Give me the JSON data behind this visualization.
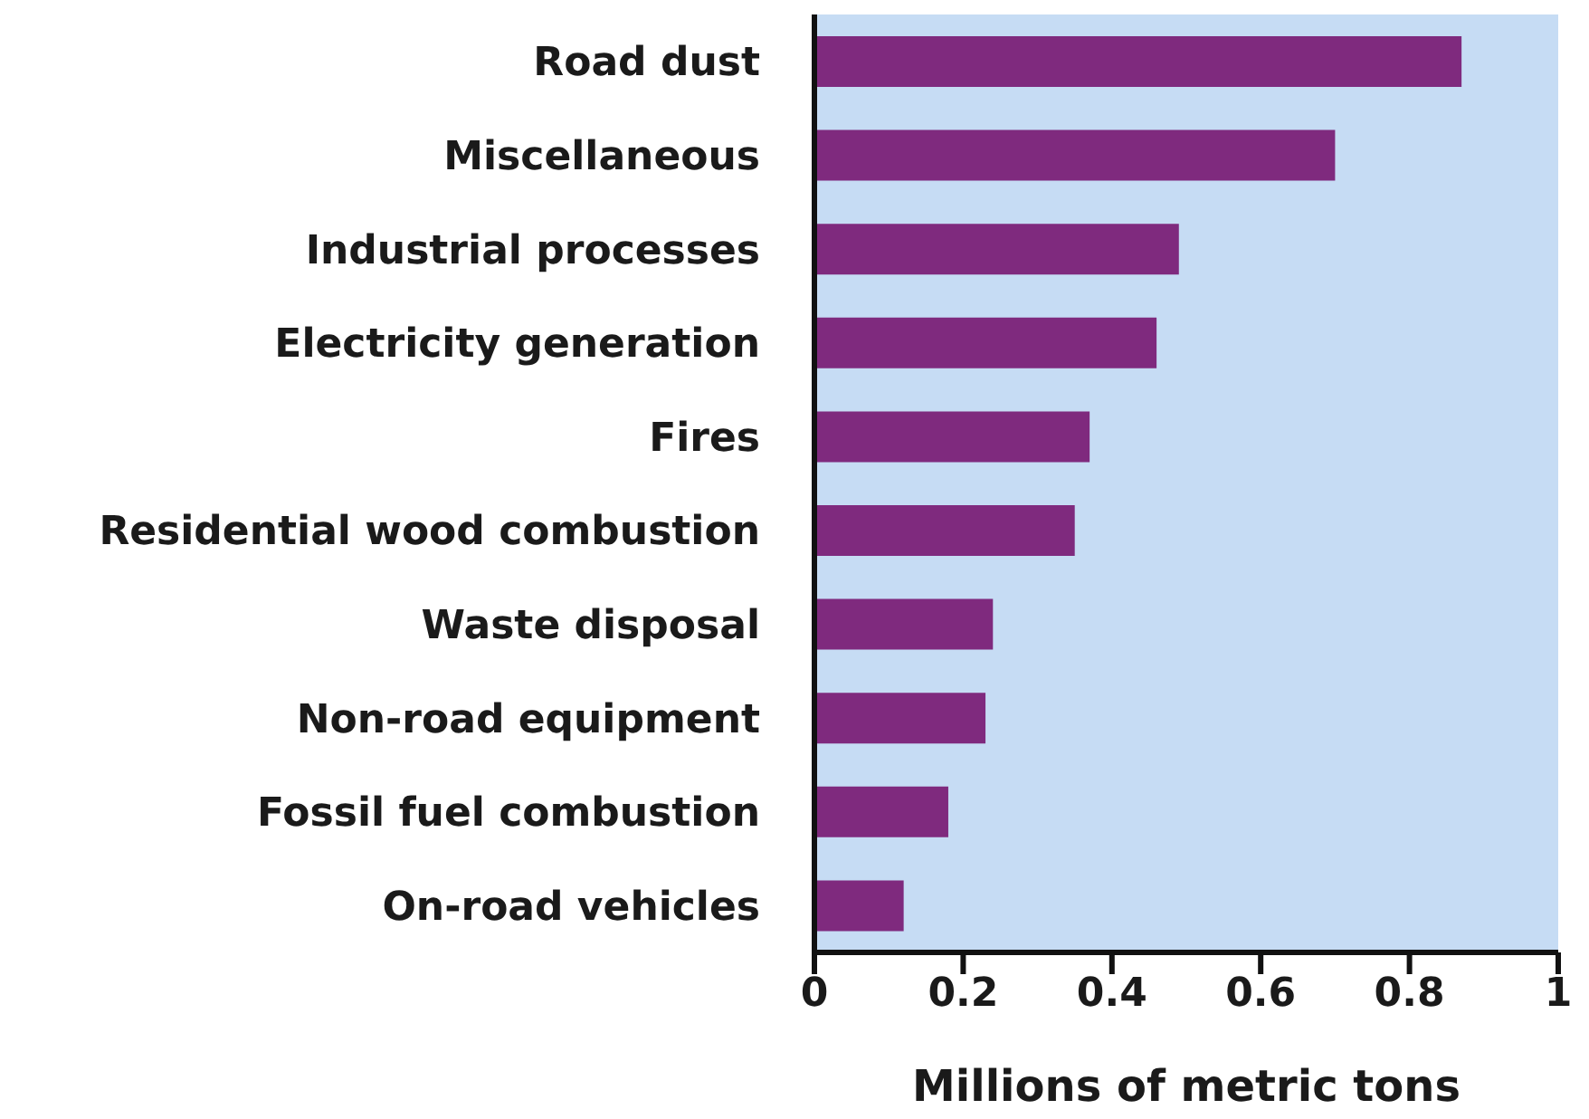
{
  "chart_data": {
    "type": "bar",
    "orientation": "horizontal",
    "xlabel": "Millions of metric tons",
    "categories": [
      "Road dust",
      "Miscellaneous",
      "Industrial processes",
      "Electricity generation",
      "Fires",
      "Residential wood combustion",
      "Waste disposal",
      "Non-road equipment",
      "Fossil fuel combustion",
      "On-road vehicles"
    ],
    "values": [
      0.87,
      0.7,
      0.49,
      0.46,
      0.37,
      0.35,
      0.24,
      0.23,
      0.18,
      0.12
    ],
    "color": "#7f2a7e",
    "xlim": [
      0,
      1
    ],
    "xticks": [
      0,
      0.2,
      0.4,
      0.6,
      0.8,
      1
    ]
  }
}
